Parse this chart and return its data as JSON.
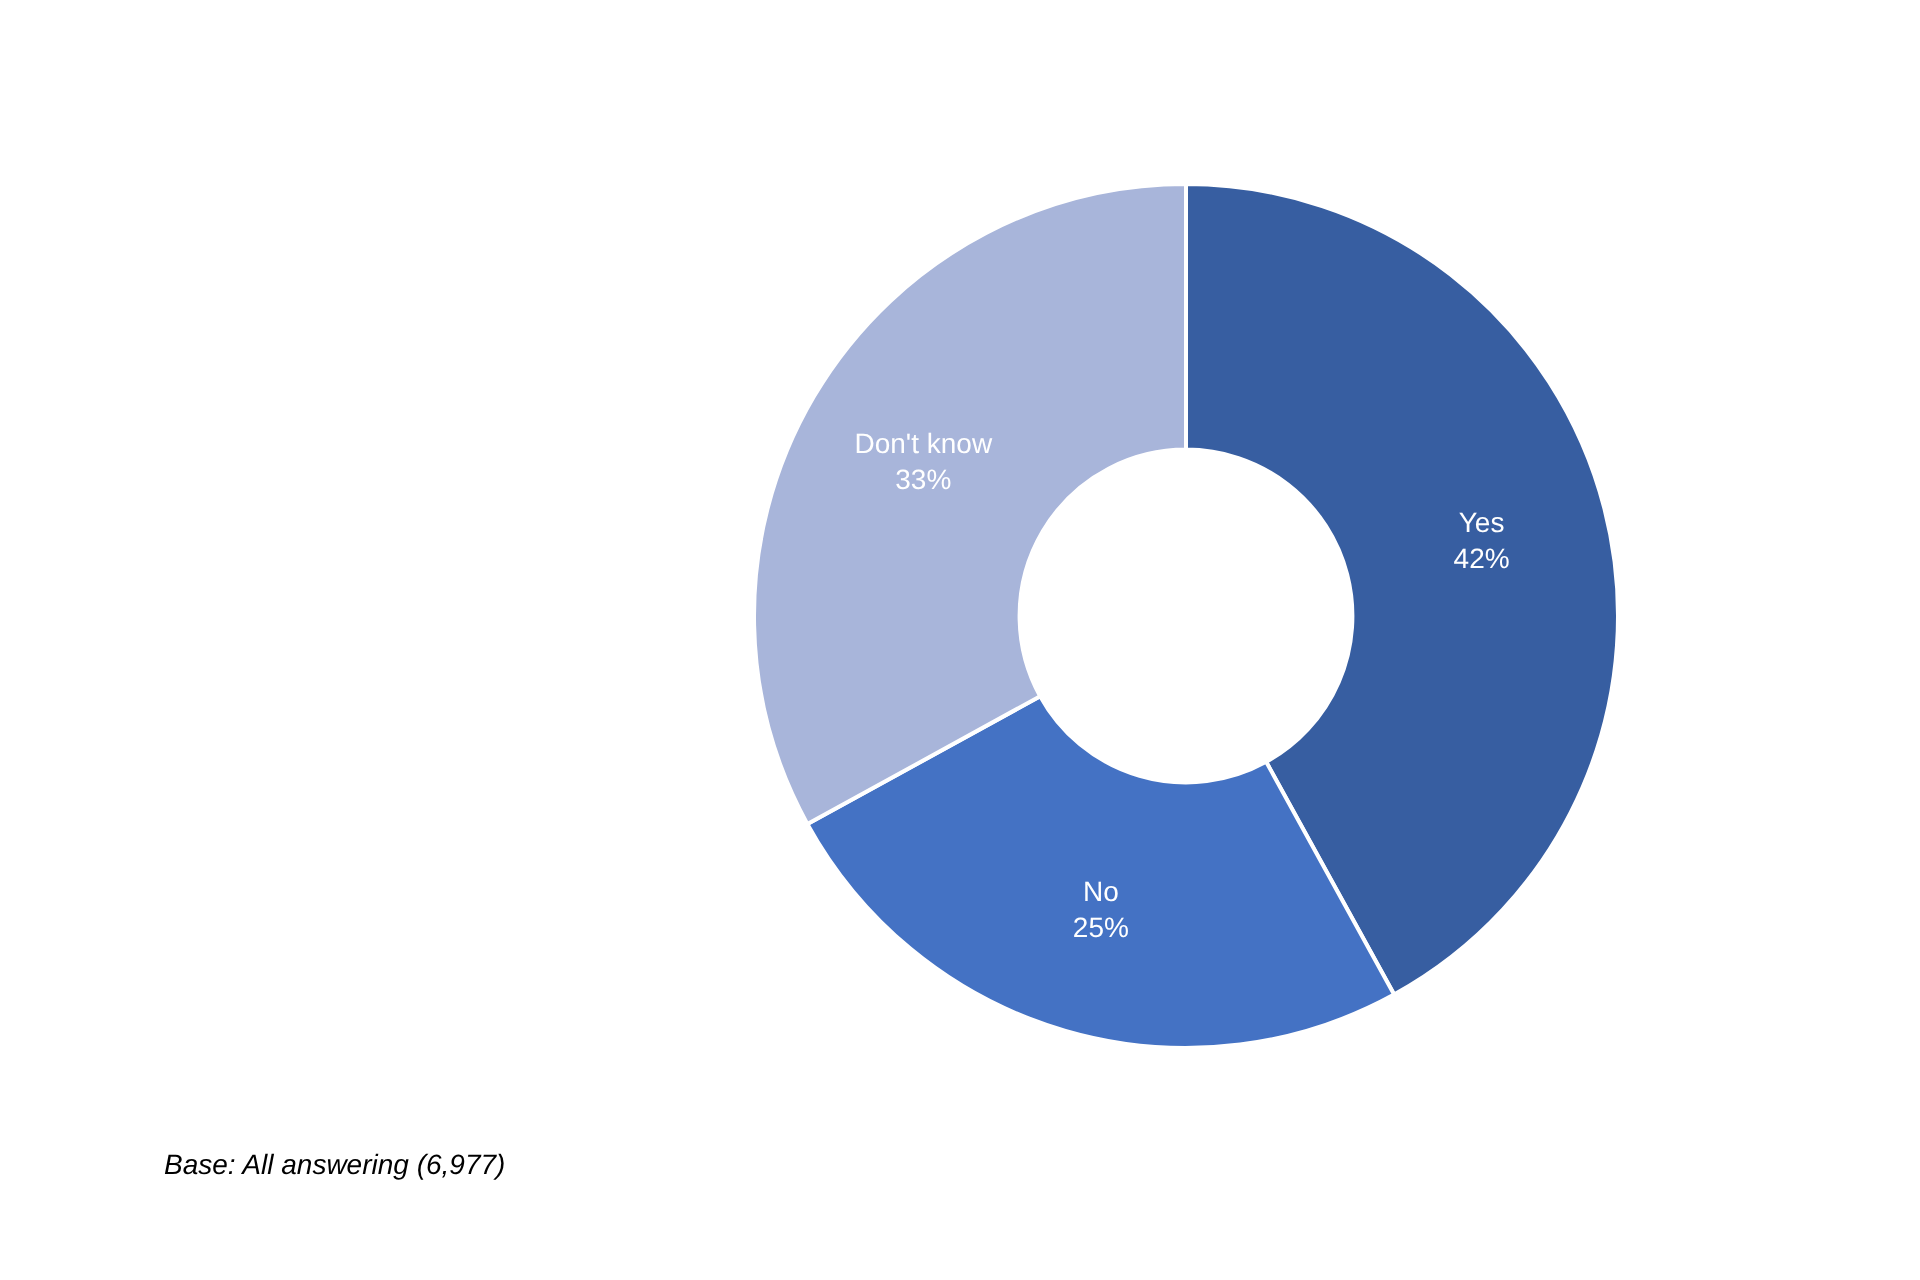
{
  "chart_data": {
    "type": "donut",
    "categories": [
      "Yes",
      "No",
      "Don't know"
    ],
    "values": [
      42,
      25,
      33
    ],
    "value_labels": [
      "42%",
      "25%",
      "33%"
    ],
    "colors": [
      "#375ea1",
      "#4472c4",
      "#a8b5da"
    ],
    "annotations": [
      "Base: All answering (6,977)"
    ]
  }
}
